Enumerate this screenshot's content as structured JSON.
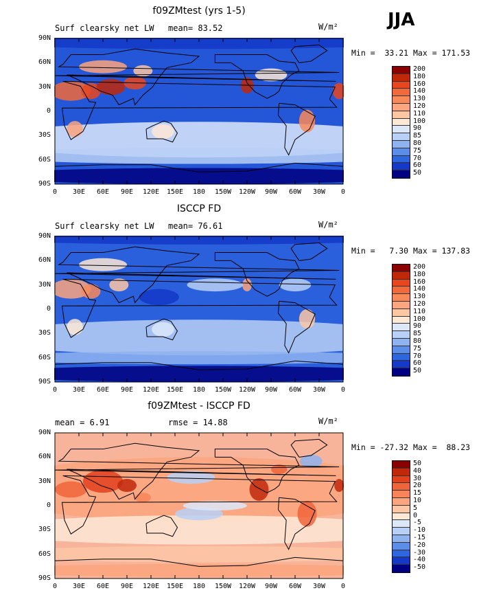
{
  "season": "JJA",
  "panels": [
    {
      "title": "f09ZMtest (yrs 1-5)",
      "left_label": "Surf clearsky net LW",
      "stat1": "mean=  83.52",
      "stat2": "",
      "units": "W/m²",
      "minmax": "Min =  33.21 Max = 171.53",
      "levels": [
        "200",
        "180",
        "160",
        "140",
        "130",
        "120",
        "110",
        "100",
        "90",
        "85",
        "80",
        "75",
        "70",
        "60",
        "50"
      ],
      "colors": [
        "#8b0000",
        "#c0280a",
        "#e8461e",
        "#f06a3c",
        "#f8895a",
        "#fca57e",
        "#fdc7a6",
        "#fde8d6",
        "#dce8fa",
        "#b8d0f6",
        "#8fb3f0",
        "#5c8ee8",
        "#2e66e0",
        "#1438c8",
        "#000080"
      ],
      "background": "#2457d8"
    },
    {
      "title": "ISCCP FD",
      "left_label": "Surf clearsky net LW",
      "stat1": "mean=  76.61",
      "stat2": "",
      "units": "W/m²",
      "minmax": "Min =   7.30 Max = 137.83",
      "levels": [
        "200",
        "180",
        "160",
        "140",
        "130",
        "120",
        "110",
        "100",
        "90",
        "85",
        "80",
        "75",
        "70",
        "60",
        "50"
      ],
      "colors": [
        "#8b0000",
        "#c0280a",
        "#e8461e",
        "#f06a3c",
        "#f8895a",
        "#fca57e",
        "#fdc7a6",
        "#fde8d6",
        "#dce8fa",
        "#b8d0f6",
        "#8fb3f0",
        "#5c8ee8",
        "#2e66e0",
        "#1438c8",
        "#000080"
      ],
      "background": "#2a60dc"
    },
    {
      "title": "f09ZMtest - ISCCP FD",
      "left_label": "mean =   6.91",
      "stat1": "rmse =  14.88",
      "stat2": "",
      "units": "W/m²",
      "minmax": "Min = -27.32 Max =  88.23",
      "levels": [
        "50",
        "40",
        "30",
        "20",
        "15",
        "10",
        "5",
        "0",
        "-5",
        "-10",
        "-15",
        "-20",
        "-30",
        "-40",
        "-50"
      ],
      "colors": [
        "#8b0000",
        "#c0280a",
        "#e0401c",
        "#f0643a",
        "#f8855a",
        "#fca57e",
        "#fdc7a6",
        "#fde8d6",
        "#dce8fa",
        "#b8d0f6",
        "#8fb3f0",
        "#5c8ee8",
        "#2e66e0",
        "#1438c8",
        "#000080"
      ],
      "background": "#f8b49a"
    }
  ],
  "lat_ticks": [
    "90N",
    "60N",
    "30N",
    "0",
    "30S",
    "60S",
    "90S"
  ],
  "lon_ticks": [
    "0",
    "30E",
    "60E",
    "90E",
    "120E",
    "150E",
    "180",
    "150W",
    "120W",
    "90W",
    "60W",
    "30W",
    "0"
  ]
}
